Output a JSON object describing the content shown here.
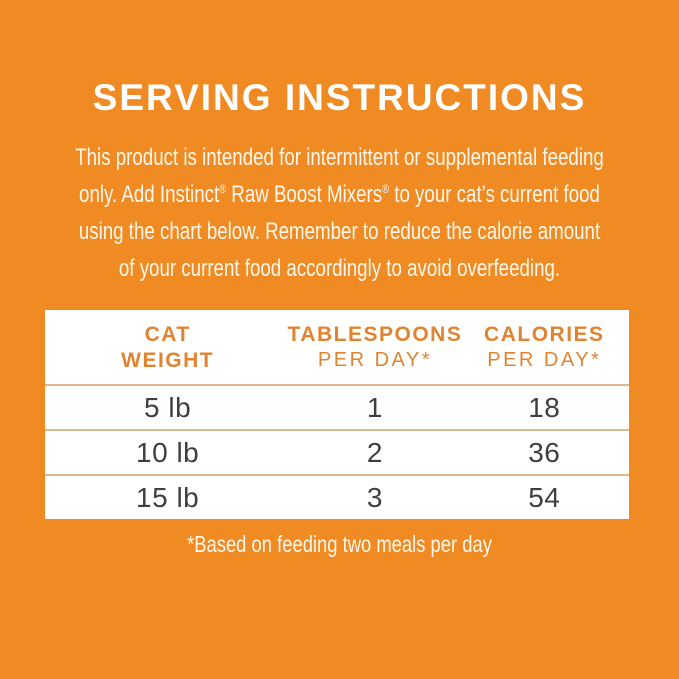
{
  "title": "SERVING INSTRUCTIONS",
  "paragraph": {
    "lines": [
      "This product is intended for intermittent or supplemental feeding",
      "only. Add Instinct® Raw Boost Mixers® to your cat’s current food",
      "using the chart below. Remember to reduce the calorie amount",
      "of your current food accordingly to avoid overfeeding."
    ]
  },
  "table": {
    "columns": [
      {
        "line1": "CAT",
        "line2": "WEIGHT"
      },
      {
        "line1": "TABLESPOONS",
        "line2": "PER DAY*"
      },
      {
        "line1": "CALORIES",
        "line2": "PER DAY*"
      }
    ],
    "rows": [
      {
        "weight": "5 lb",
        "tablespoons": "1",
        "calories": "18"
      },
      {
        "weight": "10 lb",
        "tablespoons": "2",
        "calories": "36"
      },
      {
        "weight": "15 lb",
        "tablespoons": "3",
        "calories": "54"
      }
    ],
    "footnote": "*Based on feeding two meals per day"
  },
  "colors": {
    "background_orange": "#F08B24",
    "header_text_orange": "#E08431",
    "row_divider_tan": "#DFB78F",
    "body_text_dark": "#3F3F41",
    "light_text_cream": "#FCF7EA",
    "title_white": "#FFFFFF",
    "table_background": "#FFFFFF"
  }
}
